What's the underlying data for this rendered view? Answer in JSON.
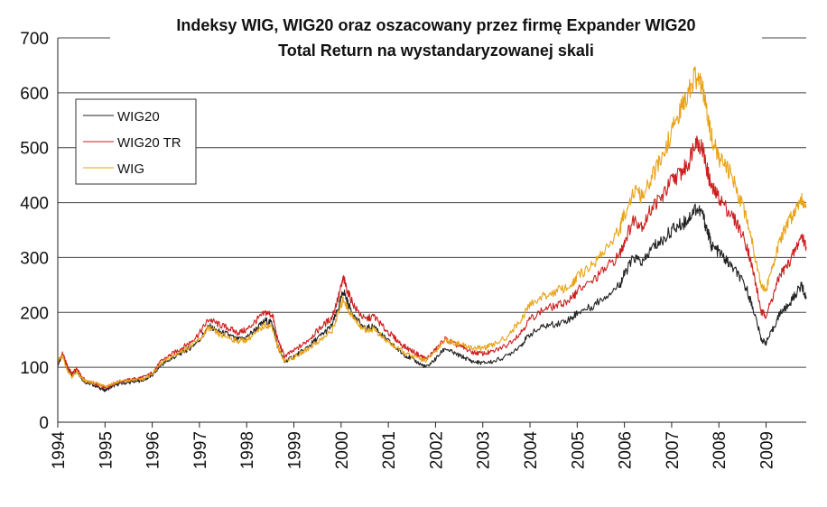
{
  "chart_data": {
    "type": "line",
    "title": "Indeksy WIG, WIG20 oraz oszacowany przez firmę Expander WIG20",
    "subtitle": "Total Return na wystandaryzowanej skali",
    "xlabel": "",
    "ylabel": "",
    "xlim": [
      1994.0,
      2009.85
    ],
    "ylim": [
      0,
      700
    ],
    "yticks": [
      "0",
      "100",
      "200",
      "300",
      "400",
      "500",
      "600",
      "700"
    ],
    "xticks": [
      "1994",
      "1995",
      "1996",
      "1997",
      "1998",
      "1999",
      "2000",
      "2001",
      "2002",
      "2003",
      "2004",
      "2005",
      "2006",
      "2007",
      "2008",
      "2009"
    ],
    "grid": "horizontal",
    "legend_position": "top-left",
    "series": [
      {
        "name": "WIG20",
        "color": "#222222",
        "x": [
          1994.0,
          1994.1,
          1994.2,
          1994.3,
          1994.4,
          1994.5,
          1994.6,
          1994.75,
          1994.9,
          1995.0,
          1995.15,
          1995.3,
          1995.5,
          1995.7,
          1995.85,
          1996.0,
          1996.2,
          1996.4,
          1996.6,
          1996.8,
          1997.0,
          1997.2,
          1997.4,
          1997.6,
          1997.8,
          1998.0,
          1998.2,
          1998.4,
          1998.55,
          1998.65,
          1998.8,
          1999.0,
          1999.2,
          1999.4,
          1999.6,
          1999.8,
          1999.95,
          2000.05,
          2000.15,
          2000.3,
          2000.5,
          2000.7,
          2000.9,
          2001.1,
          2001.3,
          2001.5,
          2001.7,
          2001.8,
          2002.0,
          2002.2,
          2002.4,
          2002.6,
          2002.8,
          2003.0,
          2003.2,
          2003.5,
          2003.8,
          2004.0,
          2004.3,
          2004.6,
          2004.9,
          2005.0,
          2005.3,
          2005.6,
          2005.9,
          2006.0,
          2006.2,
          2006.4,
          2006.6,
          2006.8,
          2007.0,
          2007.2,
          2007.35,
          2007.5,
          2007.65,
          2007.75,
          2007.85,
          2008.0,
          2008.2,
          2008.4,
          2008.6,
          2008.75,
          2008.9,
          2009.0,
          2009.15,
          2009.3,
          2009.45,
          2009.6,
          2009.75,
          2009.85
        ],
        "y": [
          105,
          122,
          100,
          85,
          95,
          80,
          72,
          68,
          62,
          58,
          65,
          70,
          72,
          75,
          78,
          85,
          105,
          115,
          125,
          135,
          150,
          175,
          165,
          160,
          150,
          155,
          170,
          185,
          180,
          140,
          110,
          120,
          130,
          145,
          160,
          175,
          210,
          240,
          215,
          190,
          170,
          175,
          155,
          140,
          125,
          115,
          105,
          100,
          115,
          135,
          125,
          118,
          110,
          108,
          110,
          120,
          140,
          160,
          175,
          180,
          190,
          200,
          210,
          230,
          250,
          270,
          300,
          290,
          320,
          330,
          350,
          360,
          370,
          390,
          380,
          350,
          320,
          310,
          290,
          270,
          240,
          200,
          150,
          145,
          170,
          200,
          210,
          230,
          250,
          225
        ]
      },
      {
        "name": "WIG20 TR",
        "color": "#cc1f1f",
        "x": [
          1994.0,
          1994.1,
          1994.2,
          1994.3,
          1994.4,
          1994.5,
          1994.6,
          1994.75,
          1994.9,
          1995.0,
          1995.15,
          1995.3,
          1995.5,
          1995.7,
          1995.85,
          1996.0,
          1996.2,
          1996.4,
          1996.6,
          1996.8,
          1997.0,
          1997.2,
          1997.4,
          1997.6,
          1997.8,
          1998.0,
          1998.2,
          1998.4,
          1998.55,
          1998.65,
          1998.8,
          1999.0,
          1999.2,
          1999.4,
          1999.6,
          1999.8,
          1999.95,
          2000.05,
          2000.15,
          2000.3,
          2000.5,
          2000.7,
          2000.9,
          2001.1,
          2001.3,
          2001.5,
          2001.7,
          2001.8,
          2002.0,
          2002.2,
          2002.4,
          2002.6,
          2002.8,
          2003.0,
          2003.2,
          2003.5,
          2003.8,
          2004.0,
          2004.3,
          2004.6,
          2004.9,
          2005.0,
          2005.3,
          2005.6,
          2005.9,
          2006.0,
          2006.2,
          2006.4,
          2006.6,
          2006.8,
          2007.0,
          2007.2,
          2007.35,
          2007.5,
          2007.65,
          2007.75,
          2007.85,
          2008.0,
          2008.2,
          2008.4,
          2008.6,
          2008.75,
          2008.9,
          2009.0,
          2009.15,
          2009.3,
          2009.45,
          2009.6,
          2009.75,
          2009.85
        ],
        "y": [
          108,
          125,
          103,
          88,
          98,
          83,
          75,
          71,
          66,
          62,
          69,
          74,
          77,
          80,
          83,
          90,
          112,
          123,
          134,
          145,
          162,
          188,
          178,
          172,
          163,
          168,
          185,
          200,
          195,
          152,
          120,
          130,
          142,
          158,
          175,
          190,
          230,
          262,
          235,
          208,
          187,
          193,
          172,
          156,
          140,
          130,
          120,
          115,
          132,
          152,
          142,
          135,
          127,
          125,
          128,
          140,
          163,
          188,
          206,
          213,
          226,
          240,
          255,
          280,
          305,
          330,
          370,
          358,
          395,
          410,
          440,
          455,
          470,
          515,
          500,
          460,
          425,
          410,
          385,
          360,
          320,
          265,
          200,
          195,
          230,
          270,
          285,
          310,
          340,
          320
        ]
      },
      {
        "name": "WIG",
        "color": "#e8a317",
        "x": [
          1994.0,
          1994.1,
          1994.2,
          1994.3,
          1994.4,
          1994.5,
          1994.6,
          1994.75,
          1994.9,
          1995.0,
          1995.15,
          1995.3,
          1995.5,
          1995.7,
          1995.85,
          1996.0,
          1996.2,
          1996.4,
          1996.6,
          1996.8,
          1997.0,
          1997.2,
          1997.4,
          1997.6,
          1997.8,
          1998.0,
          1998.2,
          1998.4,
          1998.55,
          1998.65,
          1998.8,
          1999.0,
          1999.2,
          1999.4,
          1999.6,
          1999.8,
          1999.95,
          2000.05,
          2000.15,
          2000.3,
          2000.5,
          2000.7,
          2000.9,
          2001.1,
          2001.3,
          2001.5,
          2001.7,
          2001.8,
          2002.0,
          2002.2,
          2002.4,
          2002.6,
          2002.8,
          2003.0,
          2003.2,
          2003.5,
          2003.8,
          2004.0,
          2004.3,
          2004.6,
          2004.9,
          2005.0,
          2005.3,
          2005.6,
          2005.9,
          2006.0,
          2006.2,
          2006.4,
          2006.6,
          2006.8,
          2007.0,
          2007.2,
          2007.35,
          2007.5,
          2007.65,
          2007.75,
          2007.85,
          2008.0,
          2008.2,
          2008.4,
          2008.6,
          2008.75,
          2008.9,
          2009.0,
          2009.15,
          2009.3,
          2009.45,
          2009.6,
          2009.75,
          2009.85
        ],
        "y": [
          112,
          120,
          96,
          82,
          92,
          80,
          74,
          72,
          68,
          66,
          70,
          74,
          76,
          78,
          80,
          88,
          108,
          118,
          128,
          138,
          150,
          172,
          160,
          155,
          148,
          150,
          162,
          178,
          172,
          138,
          112,
          118,
          128,
          140,
          152,
          165,
          200,
          225,
          205,
          185,
          168,
          170,
          152,
          140,
          128,
          120,
          115,
          112,
          130,
          150,
          145,
          140,
          135,
          135,
          140,
          155,
          185,
          215,
          230,
          240,
          250,
          265,
          285,
          315,
          350,
          380,
          420,
          410,
          450,
          480,
          530,
          570,
          600,
          630,
          610,
          560,
          520,
          480,
          460,
          420,
          370,
          310,
          250,
          240,
          290,
          330,
          360,
          385,
          410,
          390
        ]
      }
    ]
  }
}
